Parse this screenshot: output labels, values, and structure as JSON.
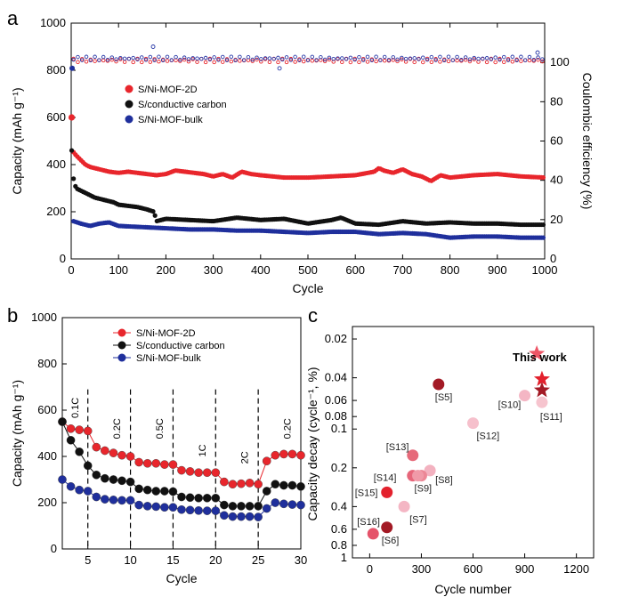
{
  "colors": {
    "red": "#e8262c",
    "black": "#111111",
    "blue": "#1f2f9c",
    "red_ce": "#e8262c",
    "blue_ce": "#2a3aa8"
  },
  "chart_data": [
    {
      "panel": "a",
      "type": "line",
      "xlabel": "Cycle",
      "ylabel": "Capacity (mAh g⁻¹)",
      "y2label": "Coulombic efficiency (%)",
      "xlim": [
        0,
        1000
      ],
      "ylim": [
        0,
        1000
      ],
      "y2lim": [
        0,
        120
      ],
      "xticks": [
        "0",
        "100",
        "200",
        "300",
        "400",
        "500",
        "600",
        "700",
        "800",
        "900",
        "1000"
      ],
      "yticks": [
        "0",
        "200",
        "400",
        "600",
        "800",
        "1000"
      ],
      "y2ticks": [
        "0",
        "20",
        "40",
        "60",
        "80",
        "100"
      ],
      "legend": [
        "S/Ni-MOF-2D",
        "S/conductive  carbon",
        "S/Ni-MOF-bulk"
      ],
      "series": [
        {
          "name": "S/Ni-MOF-2D",
          "color": "red",
          "x": [
            1,
            2,
            10,
            20,
            30,
            40,
            50,
            60,
            70,
            80,
            100,
            120,
            140,
            160,
            180,
            200,
            220,
            240,
            260,
            280,
            300,
            320,
            340,
            360,
            380,
            400,
            450,
            500,
            550,
            600,
            640,
            650,
            660,
            680,
            700,
            720,
            740,
            760,
            780,
            800,
            850,
            900,
            950,
            1000
          ],
          "y": [
            600,
            460,
            440,
            420,
            400,
            390,
            385,
            380,
            375,
            370,
            365,
            370,
            365,
            360,
            355,
            360,
            375,
            370,
            365,
            360,
            350,
            360,
            345,
            370,
            360,
            355,
            345,
            345,
            350,
            355,
            370,
            385,
            375,
            365,
            380,
            360,
            350,
            330,
            355,
            345,
            355,
            360,
            350,
            345
          ]
        },
        {
          "name": "S/conductive  carbon",
          "color": "black",
          "x": [
            1,
            5,
            10,
            20,
            30,
            40,
            50,
            60,
            70,
            80,
            90,
            100,
            120,
            140,
            160,
            175,
            180,
            200,
            250,
            300,
            350,
            400,
            450,
            500,
            550,
            570,
            600,
            650,
            700,
            750,
            800,
            850,
            900,
            950,
            1000
          ],
          "y": [
            460,
            340,
            300,
            290,
            280,
            270,
            260,
            255,
            250,
            245,
            240,
            230,
            225,
            220,
            210,
            200,
            160,
            170,
            165,
            160,
            175,
            165,
            170,
            150,
            165,
            175,
            150,
            145,
            160,
            150,
            155,
            150,
            150,
            145,
            145
          ]
        },
        {
          "name": "S/Ni-MOF-bulk",
          "color": "blue",
          "x": [
            5,
            20,
            40,
            60,
            80,
            100,
            150,
            200,
            250,
            300,
            350,
            400,
            450,
            500,
            550,
            600,
            650,
            700,
            750,
            800,
            850,
            900,
            950,
            1000
          ],
          "y": [
            160,
            150,
            140,
            150,
            155,
            140,
            135,
            130,
            125,
            125,
            120,
            120,
            115,
            110,
            115,
            115,
            105,
            110,
            105,
            90,
            95,
            95,
            90,
            90
          ]
        }
      ],
      "ce_series": [
        {
          "color": "red_ce",
          "level": 101
        },
        {
          "color": "blue_ce",
          "level": 102
        }
      ]
    },
    {
      "panel": "b",
      "type": "line",
      "xlabel": "Cycle",
      "ylabel": "Capacity (mAh g⁻¹)",
      "xlim": [
        2,
        30
      ],
      "ylim": [
        0,
        1000
      ],
      "xticks": [
        "5",
        "10",
        "15",
        "20",
        "25",
        "30"
      ],
      "yticks": [
        "0",
        "200",
        "400",
        "600",
        "800",
        "1000"
      ],
      "legend": [
        "S/Ni-MOF-2D",
        "S/conductive  carbon",
        "S/Ni-MOF-bulk"
      ],
      "rate_labels": [
        "0.1C",
        "0.2C",
        "0.5C",
        "1C",
        "2C",
        "0.2C"
      ],
      "dividers": [
        5,
        10,
        15,
        20,
        25
      ],
      "series": [
        {
          "name": "S/Ni-MOF-2D",
          "color": "red",
          "x": [
            2,
            3,
            4,
            5,
            6,
            7,
            8,
            9,
            10,
            11,
            12,
            13,
            14,
            15,
            16,
            17,
            18,
            19,
            20,
            21,
            22,
            23,
            24,
            25,
            26,
            27,
            28,
            29,
            30
          ],
          "y": [
            550,
            520,
            515,
            510,
            440,
            425,
            415,
            405,
            400,
            375,
            370,
            370,
            365,
            365,
            340,
            335,
            330,
            330,
            330,
            290,
            280,
            282,
            285,
            280,
            380,
            405,
            410,
            410,
            405
          ]
        },
        {
          "name": "S/conductive  carbon",
          "color": "black",
          "x": [
            2,
            3,
            4,
            5,
            6,
            7,
            8,
            9,
            10,
            11,
            12,
            13,
            14,
            15,
            16,
            17,
            18,
            19,
            20,
            21,
            22,
            23,
            24,
            25,
            26,
            27,
            28,
            29,
            30
          ],
          "y": [
            550,
            470,
            420,
            360,
            320,
            305,
            300,
            295,
            290,
            260,
            255,
            250,
            250,
            248,
            225,
            222,
            220,
            220,
            220,
            190,
            185,
            185,
            185,
            185,
            250,
            280,
            275,
            275,
            270
          ]
        },
        {
          "name": "S/Ni-MOF-bulk",
          "color": "blue",
          "x": [
            2,
            3,
            4,
            5,
            6,
            7,
            8,
            9,
            10,
            11,
            12,
            13,
            14,
            15,
            16,
            17,
            18,
            19,
            20,
            21,
            22,
            23,
            24,
            25,
            26,
            27,
            28,
            29,
            30
          ],
          "y": [
            300,
            270,
            255,
            250,
            225,
            215,
            212,
            210,
            210,
            190,
            185,
            183,
            180,
            180,
            170,
            168,
            166,
            165,
            165,
            145,
            140,
            140,
            140,
            138,
            175,
            200,
            195,
            192,
            190
          ]
        }
      ]
    },
    {
      "panel": "c",
      "type": "scatter",
      "xlabel": "Cycle number",
      "ylabel": "Capacity decay (cycle⁻¹, %)",
      "xlim": [
        -100,
        1300
      ],
      "ylim": [
        0.016,
        1
      ],
      "yscale": "log-inverted",
      "xticks": [
        "0",
        "300",
        "600",
        "900",
        "1200"
      ],
      "yticks": [
        "0.02",
        "0.04",
        "0.06",
        "0.08",
        "0.1",
        "0.2",
        "0.4",
        "0.6",
        "0.8",
        "1"
      ],
      "points": [
        {
          "label": "[S5]",
          "x": 400,
          "y": 0.045,
          "color": "#a31a25"
        },
        {
          "label": "[S10]",
          "x": 900,
          "y": 0.055,
          "color": "#f4b6c4"
        },
        {
          "label": "[S11]",
          "x": 1000,
          "y": 0.062,
          "color": "#f6c4ce"
        },
        {
          "label": "[S12]",
          "x": 600,
          "y": 0.09,
          "color": "#f6c0cc"
        },
        {
          "label": "[S13]",
          "x": 250,
          "y": 0.16,
          "color": "#e66a7a"
        },
        {
          "label": "[S8]",
          "x": 350,
          "y": 0.21,
          "color": "#f3b2c0"
        },
        {
          "label": "[S14]",
          "x": 250,
          "y": 0.23,
          "color": "#e6667a"
        },
        {
          "label": "",
          "x": 300,
          "y": 0.23,
          "color": "#ec8796"
        },
        {
          "label": "[S9]",
          "x": 280,
          "y": 0.23,
          "color": "#f09aa8"
        },
        {
          "label": "[S15]",
          "x": 100,
          "y": 0.31,
          "color": "#e3212d"
        },
        {
          "label": "[S7]",
          "x": 200,
          "y": 0.4,
          "color": "#f4b6c4"
        },
        {
          "label": "[S16]",
          "x": 20,
          "y": 0.65,
          "color": "#e5536a"
        },
        {
          "label": "[S6]",
          "x": 100,
          "y": 0.58,
          "color": "#a31a25"
        }
      ],
      "this_work": {
        "label": "This work",
        "stars": [
          {
            "x": 970,
            "y": 0.026,
            "color": "#ee5566"
          },
          {
            "x": 1000,
            "y": 0.041,
            "color": "#e3212d"
          },
          {
            "x": 1000,
            "y": 0.05,
            "color": "#a31a25"
          }
        ]
      }
    }
  ],
  "panels": {
    "a": "a",
    "b": "b",
    "c": "c"
  }
}
